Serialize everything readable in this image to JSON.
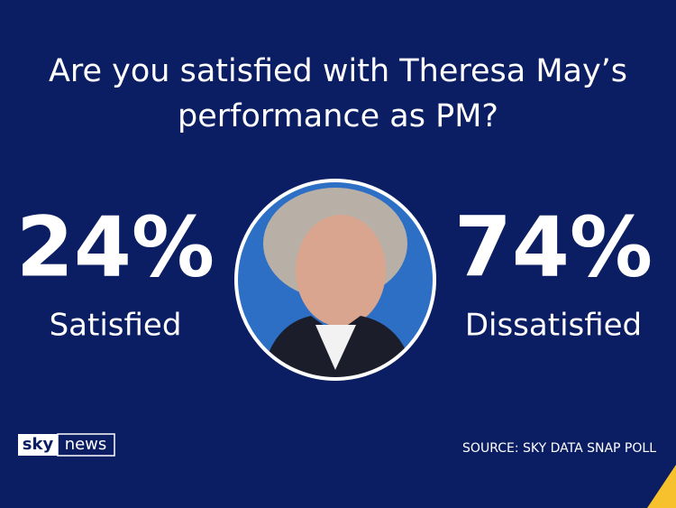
{
  "title": [
    "Are you satisfied with Theresa May’s",
    "performance as PM?"
  ],
  "results": [
    {
      "value": "24%",
      "label": "Satisfied"
    },
    {
      "value": "74%",
      "label": "Dissatisfied"
    }
  ],
  "logo": {
    "part1": "sky",
    "part2": "news"
  },
  "source": "SOURCE: SKY DATA SNAP POLL"
}
